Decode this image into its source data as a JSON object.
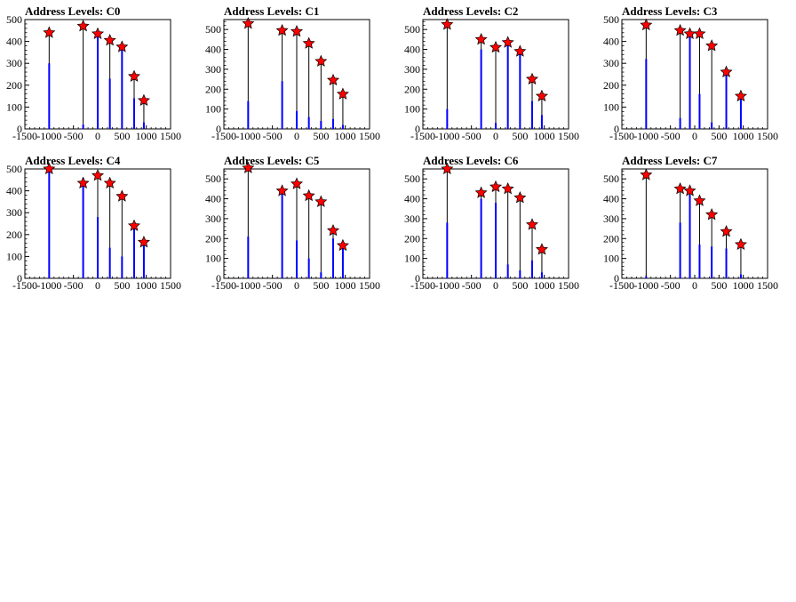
{
  "figure": {
    "background": "#ffffff",
    "bar_color": "#0000ff",
    "peak_marker_color": "#ff0000",
    "marker_outline": "#000000"
  },
  "chart_data": [
    {
      "type": "bar",
      "title": "Address Levels: C0",
      "xlim": [
        -1500,
        1500
      ],
      "ylim": [
        0,
        500
      ],
      "xticks": [
        "-1500",
        "-1000",
        "-500",
        "0",
        "500",
        "1000",
        "1500"
      ],
      "yticks": [
        "0",
        "100",
        "200",
        "300",
        "400",
        "500"
      ],
      "peaks": [
        {
          "x": -1000,
          "y": 440
        },
        {
          "x": -300,
          "y": 470
        },
        {
          "x": 0,
          "y": 435
        },
        {
          "x": 250,
          "y": 405
        },
        {
          "x": 500,
          "y": 375
        },
        {
          "x": 750,
          "y": 240
        },
        {
          "x": 950,
          "y": 130
        }
      ],
      "bars": [
        {
          "x": -1000,
          "y": 300
        },
        {
          "x": -300,
          "y": 20
        },
        {
          "x": 0,
          "y": 440
        },
        {
          "x": 250,
          "y": 230
        },
        {
          "x": 500,
          "y": 370
        },
        {
          "x": 750,
          "y": 140
        },
        {
          "x": 950,
          "y": 30
        }
      ]
    },
    {
      "type": "bar",
      "title": "Address Levels: C1",
      "xlim": [
        -1500,
        1500
      ],
      "ylim": [
        0,
        550
      ],
      "xticks": [
        "-1500",
        "-1000",
        "-500",
        "0",
        "500",
        "1000",
        "1500"
      ],
      "yticks": [
        "0",
        "100",
        "200",
        "300",
        "400",
        "500"
      ],
      "peaks": [
        {
          "x": -1000,
          "y": 530
        },
        {
          "x": -300,
          "y": 495
        },
        {
          "x": 0,
          "y": 490
        },
        {
          "x": 250,
          "y": 430
        },
        {
          "x": 500,
          "y": 340
        },
        {
          "x": 750,
          "y": 245
        },
        {
          "x": 950,
          "y": 175
        }
      ],
      "bars": [
        {
          "x": -1000,
          "y": 140
        },
        {
          "x": -300,
          "y": 240
        },
        {
          "x": 0,
          "y": 90
        },
        {
          "x": 250,
          "y": 60
        },
        {
          "x": 500,
          "y": 40
        },
        {
          "x": 750,
          "y": 50
        },
        {
          "x": 950,
          "y": 20
        }
      ]
    },
    {
      "type": "bar",
      "title": "Address Levels: C2",
      "xlim": [
        -1500,
        1500
      ],
      "ylim": [
        0,
        550
      ],
      "xticks": [
        "-1500",
        "-1000",
        "-500",
        "0",
        "500",
        "1000",
        "1500"
      ],
      "yticks": [
        "0",
        "100",
        "200",
        "300",
        "400",
        "500"
      ],
      "peaks": [
        {
          "x": -1000,
          "y": 525
        },
        {
          "x": -300,
          "y": 450
        },
        {
          "x": 0,
          "y": 410
        },
        {
          "x": 250,
          "y": 435
        },
        {
          "x": 500,
          "y": 390
        },
        {
          "x": 750,
          "y": 250
        },
        {
          "x": 950,
          "y": 165
        }
      ],
      "bars": [
        {
          "x": -1000,
          "y": 100
        },
        {
          "x": -300,
          "y": 400
        },
        {
          "x": 0,
          "y": 30
        },
        {
          "x": 250,
          "y": 420
        },
        {
          "x": 500,
          "y": 380
        },
        {
          "x": 750,
          "y": 140
        },
        {
          "x": 950,
          "y": 70
        }
      ]
    },
    {
      "type": "bar",
      "title": "Address Levels: C3",
      "xlim": [
        -1500,
        1500
      ],
      "ylim": [
        0,
        500
      ],
      "xticks": [
        "-1500",
        "-1000",
        "-500",
        "0",
        "500",
        "1000",
        "1500"
      ],
      "yticks": [
        "0",
        "100",
        "200",
        "300",
        "400",
        "500"
      ],
      "peaks": [
        {
          "x": -1000,
          "y": 475
        },
        {
          "x": -300,
          "y": 450
        },
        {
          "x": -100,
          "y": 435
        },
        {
          "x": 100,
          "y": 435
        },
        {
          "x": 350,
          "y": 380
        },
        {
          "x": 650,
          "y": 260
        },
        {
          "x": 950,
          "y": 150
        }
      ],
      "bars": [
        {
          "x": -1000,
          "y": 320
        },
        {
          "x": -300,
          "y": 50
        },
        {
          "x": -100,
          "y": 440
        },
        {
          "x": 100,
          "y": 160
        },
        {
          "x": 350,
          "y": 30
        },
        {
          "x": 650,
          "y": 250
        },
        {
          "x": 950,
          "y": 140
        }
      ]
    },
    {
      "type": "bar",
      "title": "Address Levels: C4",
      "xlim": [
        -1500,
        1500
      ],
      "ylim": [
        0,
        500
      ],
      "xticks": [
        "-1500",
        "-1000",
        "-500",
        "0",
        "500",
        "1000",
        "1500"
      ],
      "yticks": [
        "0",
        "100",
        "200",
        "300",
        "400",
        "500"
      ],
      "peaks": [
        {
          "x": -1000,
          "y": 500
        },
        {
          "x": -300,
          "y": 435
        },
        {
          "x": 0,
          "y": 470
        },
        {
          "x": 250,
          "y": 435
        },
        {
          "x": 500,
          "y": 375
        },
        {
          "x": 750,
          "y": 240
        },
        {
          "x": 950,
          "y": 165
        }
      ],
      "bars": [
        {
          "x": -1000,
          "y": 490
        },
        {
          "x": -300,
          "y": 460
        },
        {
          "x": 0,
          "y": 280
        },
        {
          "x": 250,
          "y": 140
        },
        {
          "x": 500,
          "y": 100
        },
        {
          "x": 750,
          "y": 230
        },
        {
          "x": 950,
          "y": 150
        }
      ]
    },
    {
      "type": "bar",
      "title": "Address Levels: C5",
      "xlim": [
        -1500,
        1500
      ],
      "ylim": [
        0,
        550
      ],
      "xticks": [
        "-1500",
        "-1000",
        "-500",
        "0",
        "500",
        "1000",
        "1500"
      ],
      "yticks": [
        "0",
        "100",
        "200",
        "300",
        "400",
        "500"
      ],
      "peaks": [
        {
          "x": -1000,
          "y": 555
        },
        {
          "x": -300,
          "y": 440
        },
        {
          "x": 0,
          "y": 475
        },
        {
          "x": 250,
          "y": 415
        },
        {
          "x": 500,
          "y": 385
        },
        {
          "x": 750,
          "y": 240
        },
        {
          "x": 950,
          "y": 165
        }
      ],
      "bars": [
        {
          "x": -1000,
          "y": 210
        },
        {
          "x": -300,
          "y": 430
        },
        {
          "x": 0,
          "y": 190
        },
        {
          "x": 250,
          "y": 100
        },
        {
          "x": 500,
          "y": 30
        },
        {
          "x": 750,
          "y": 200
        },
        {
          "x": 950,
          "y": 150
        }
      ]
    },
    {
      "type": "bar",
      "title": "Address Levels: C6",
      "xlim": [
        -1500,
        1500
      ],
      "ylim": [
        0,
        550
      ],
      "xticks": [
        "-1500",
        "-1000",
        "-500",
        "0",
        "500",
        "1000",
        "1500"
      ],
      "yticks": [
        "0",
        "100",
        "200",
        "300",
        "400",
        "500"
      ],
      "peaks": [
        {
          "x": -1000,
          "y": 550
        },
        {
          "x": -300,
          "y": 430
        },
        {
          "x": 0,
          "y": 460
        },
        {
          "x": 250,
          "y": 450
        },
        {
          "x": 500,
          "y": 405
        },
        {
          "x": 750,
          "y": 270
        },
        {
          "x": 950,
          "y": 145
        }
      ],
      "bars": [
        {
          "x": -1000,
          "y": 280
        },
        {
          "x": -300,
          "y": 400
        },
        {
          "x": 0,
          "y": 380
        },
        {
          "x": 250,
          "y": 70
        },
        {
          "x": 500,
          "y": 40
        },
        {
          "x": 750,
          "y": 90
        },
        {
          "x": 950,
          "y": 30
        }
      ]
    },
    {
      "type": "bar",
      "title": "Address Levels: C7",
      "xlim": [
        -1500,
        1500
      ],
      "ylim": [
        0,
        550
      ],
      "xticks": [
        "-1500",
        "-1000",
        "-500",
        "0",
        "500",
        "1000",
        "1500"
      ],
      "yticks": [
        "0",
        "100",
        "200",
        "300",
        "400",
        "500"
      ],
      "peaks": [
        {
          "x": -1000,
          "y": 520
        },
        {
          "x": -300,
          "y": 450
        },
        {
          "x": -100,
          "y": 440
        },
        {
          "x": 100,
          "y": 390
        },
        {
          "x": 350,
          "y": 320
        },
        {
          "x": 650,
          "y": 235
        },
        {
          "x": 950,
          "y": 170
        }
      ],
      "bars": [
        {
          "x": -1000,
          "y": 10
        },
        {
          "x": -300,
          "y": 280
        },
        {
          "x": -100,
          "y": 420
        },
        {
          "x": 100,
          "y": 170
        },
        {
          "x": 350,
          "y": 160
        },
        {
          "x": 650,
          "y": 150
        },
        {
          "x": 950,
          "y": 20
        }
      ]
    }
  ]
}
